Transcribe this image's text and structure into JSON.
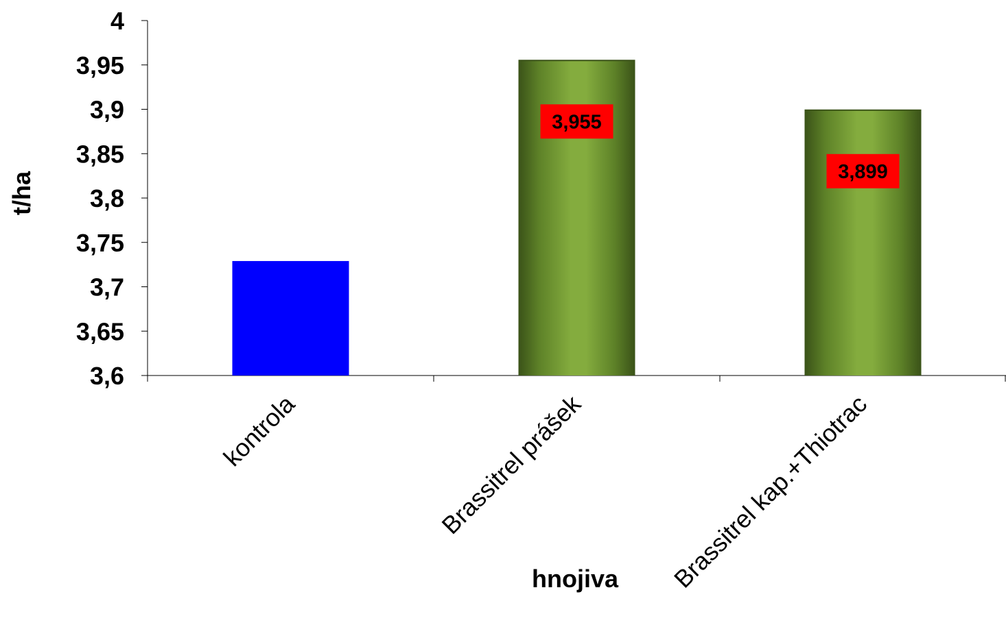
{
  "chart_data": {
    "type": "bar",
    "categories": [
      "kontrola",
      "Brassitrel prášek",
      "Brassitrel kap.+Thiotrac"
    ],
    "values": [
      3.729,
      3.955,
      3.899
    ],
    "data_labels": [
      "",
      "3,955",
      "3,899"
    ],
    "bar_colors": [
      "#0000ff",
      "#7ba33a",
      "#7ba33a"
    ],
    "bar_edge_color": "#3a5218",
    "label_bg_color": "#ff0000",
    "xlabel": "hnojiva",
    "ylabel": "t/ha",
    "ylim": [
      3.6,
      4.0
    ],
    "y_ticks": [
      3.6,
      3.65,
      3.7,
      3.75,
      3.8,
      3.85,
      3.9,
      3.95,
      4.0
    ],
    "y_tick_labels": [
      "3,6",
      "3,65",
      "3,7",
      "3,75",
      "3,8",
      "3,85",
      "3,9",
      "3,95",
      "4"
    ],
    "grid": false,
    "legend": "none"
  }
}
